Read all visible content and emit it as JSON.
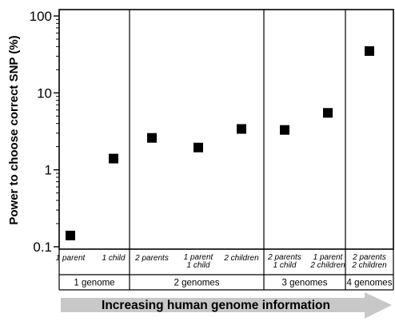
{
  "chart_data": {
    "type": "scatter",
    "ylabel": "Power to choose correct SNP (%)",
    "yscale": "log",
    "ylim": [
      0.1,
      100
    ],
    "yticks": [
      "0.1",
      "1",
      "10",
      "100"
    ],
    "categories": [
      [
        "1 parent"
      ],
      [
        "1 child"
      ],
      [
        "2 parents"
      ],
      [
        "1 parent",
        "1 child"
      ],
      [
        "2 children"
      ],
      [
        "2 parents",
        "1 child"
      ],
      [
        "1 parent",
        "2 children"
      ],
      [
        "2 parents",
        "2 children"
      ]
    ],
    "values": [
      0.14,
      1.4,
      2.6,
      1.95,
      3.4,
      3.3,
      5.5,
      35
    ],
    "groups": [
      {
        "label": "1 genome",
        "span": 2
      },
      {
        "label": "2 genomes",
        "span": 3
      },
      {
        "label": "3 genomes",
        "span": 2
      },
      {
        "label": "4 genomes",
        "span": 1
      }
    ],
    "arrow_label": "Increasing human genome information",
    "marker_color": "#000000",
    "arrow_color": "#c8c8c8"
  }
}
